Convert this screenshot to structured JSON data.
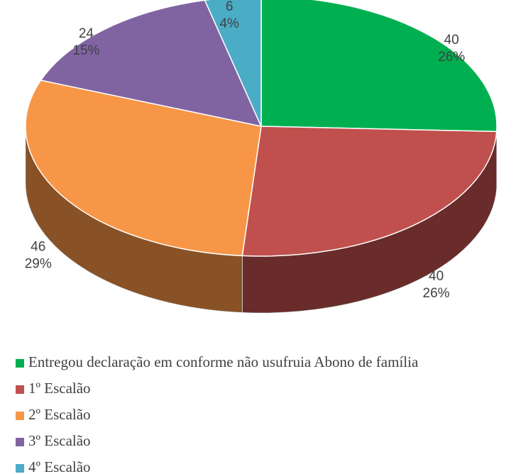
{
  "chart_data": {
    "type": "pie",
    "categories": [
      "Entregou declaração em conforme não usufruia Abono de família",
      "1º Escalão",
      "2º Escalão",
      "3º Escalão",
      "4º Escalão"
    ],
    "values": [
      40,
      40,
      46,
      24,
      6
    ],
    "percent_labels": [
      "26%",
      "26%",
      "29%",
      "15%",
      "4%"
    ],
    "colors": [
      "#00b050",
      "#c0504d",
      "#f79646",
      "#8064a2",
      "#4bacc6"
    ],
    "legend": "bottom"
  }
}
